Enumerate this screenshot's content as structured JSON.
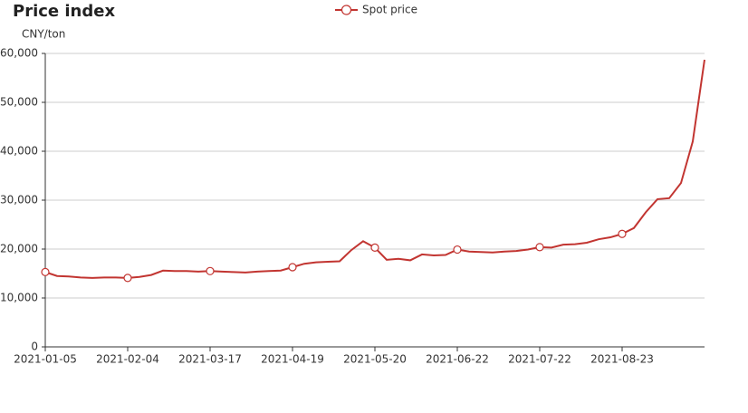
{
  "chart_data": {
    "type": "line",
    "title": "Price index",
    "y_label": "CNY/ton",
    "categories": [
      "2021-01-05",
      null,
      null,
      null,
      null,
      null,
      null,
      "2021-02-04",
      null,
      null,
      null,
      null,
      null,
      null,
      "2021-03-17",
      null,
      null,
      null,
      null,
      null,
      null,
      "2021-04-19",
      null,
      null,
      null,
      null,
      null,
      null,
      "2021-05-20",
      null,
      null,
      null,
      null,
      null,
      null,
      "2021-06-22",
      null,
      null,
      null,
      null,
      null,
      null,
      "2021-07-22",
      null,
      null,
      null,
      null,
      null,
      null,
      "2021-08-23",
      null,
      null,
      null,
      null,
      null,
      null,
      null
    ],
    "series": [
      {
        "name": "Spot price",
        "color": "#c23531",
        "values": [
          15300,
          14500,
          14400,
          14200,
          14100,
          14200,
          14200,
          14100,
          14300,
          14700,
          15600,
          15500,
          15500,
          15400,
          15500,
          15400,
          15300,
          15200,
          15400,
          15500,
          15600,
          16300,
          17000,
          17300,
          17400,
          17500,
          19800,
          21600,
          20300,
          17800,
          18000,
          17700,
          18900,
          18700,
          18800,
          19900,
          19500,
          19400,
          19300,
          19500,
          19600,
          19900,
          20400,
          20300,
          20900,
          21000,
          21300,
          22000,
          22400,
          23100,
          24300,
          27500,
          30200,
          30400,
          33500,
          42000,
          58700
        ]
      }
    ],
    "ylim": [
      0,
      60000
    ],
    "yticks": [
      0,
      {
        "value": 10000,
        "label": "10,000"
      },
      {
        "value": 20000,
        "label": "20,000"
      },
      {
        "value": 30000,
        "label": "30,000"
      },
      {
        "value": 40000,
        "label": "40,000"
      },
      {
        "value": 50000,
        "label": "50,000"
      },
      {
        "value": 60000,
        "label": "60,000"
      }
    ],
    "grid": true
  }
}
